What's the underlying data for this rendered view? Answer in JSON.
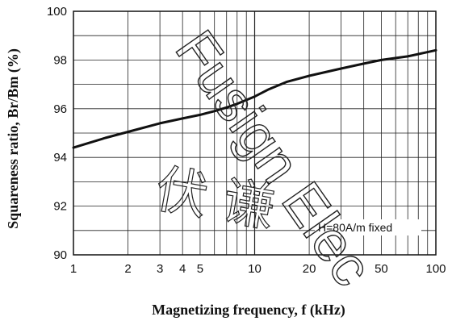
{
  "chart_data": {
    "type": "line",
    "title": "",
    "xlabel": "Magnetizing frequency, f (kHz)",
    "ylabel": "Squareness ratio, Br/Bm (%)",
    "xscale": "log",
    "xlim": [
      1,
      100
    ],
    "ylim": [
      90,
      100
    ],
    "grid": true,
    "x_ticks": [
      1,
      2,
      3,
      4,
      5,
      10,
      20,
      50,
      100
    ],
    "x_tick_labels": [
      "1",
      "2",
      "3",
      "4",
      "5",
      "10",
      "20",
      "50",
      "100"
    ],
    "y_ticks": [
      90,
      92,
      94,
      96,
      98,
      100
    ],
    "y_tick_labels": [
      "90",
      "92",
      "94",
      "96",
      "98",
      "100"
    ],
    "series": [
      {
        "x": [
          1,
          1.5,
          2,
          3,
          4,
          5,
          6,
          7,
          8,
          10,
          12,
          15,
          20,
          30,
          40,
          50,
          70,
          100
        ],
        "y": [
          94.4,
          94.8,
          95.05,
          95.4,
          95.6,
          95.75,
          95.9,
          96.05,
          96.2,
          96.5,
          96.8,
          97.1,
          97.35,
          97.65,
          97.85,
          98.0,
          98.15,
          98.4
        ]
      }
    ],
    "annotations": [
      {
        "text": "H=80A/m fixed"
      }
    ]
  },
  "watermark": {
    "latin": "Fusign Elec",
    "cjk": "伏 谦"
  }
}
